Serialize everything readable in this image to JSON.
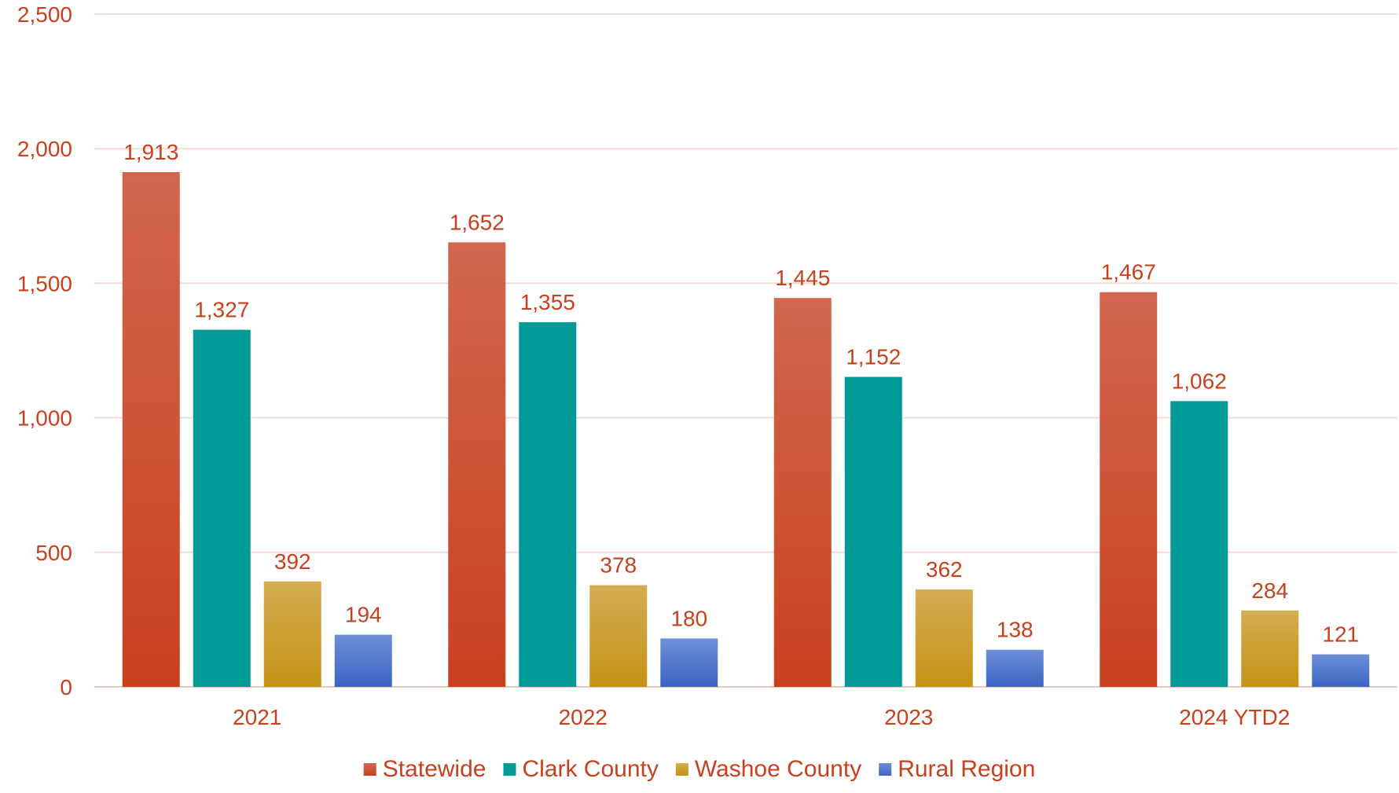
{
  "chart_data": {
    "type": "bar",
    "title": "",
    "xlabel": "",
    "ylabel": "",
    "categories": [
      "2021",
      "2022",
      "2023",
      "2024 YTD2"
    ],
    "ylim": [
      0,
      2500
    ],
    "yticks": [
      0,
      500,
      1000,
      1500,
      2000,
      2500
    ],
    "ytick_labels": [
      "0",
      "500",
      "1,000",
      "1,500",
      "2,000",
      "2,500"
    ],
    "grid": true,
    "legend_position": "bottom",
    "series": [
      {
        "name": "Statewide",
        "values": [
          1913,
          1652,
          1445,
          1467
        ],
        "labels": [
          "1,913",
          "1,652",
          "1,445",
          "1,467"
        ],
        "color": "#c8411e",
        "color_light": "#d2664f"
      },
      {
        "name": "Clark County",
        "values": [
          1327,
          1355,
          1152,
          1062
        ],
        "labels": [
          "1,327",
          "1,355",
          "1,152",
          "1,062"
        ],
        "color": "#009b96",
        "color_light": "#009b96"
      },
      {
        "name": "Washoe County",
        "values": [
          392,
          378,
          362,
          284
        ],
        "labels": [
          "392",
          "378",
          "362",
          "284"
        ],
        "color": "#c49316",
        "color_light": "#d4ac52"
      },
      {
        "name": "Rural Region",
        "values": [
          194,
          180,
          138,
          121
        ],
        "labels": [
          "194",
          "180",
          "138",
          "121"
        ],
        "color": "#3b64c4",
        "color_light": "#6e8fd8"
      }
    ],
    "text_color": "#c8411e",
    "grid_color": "#f4dcd4"
  }
}
